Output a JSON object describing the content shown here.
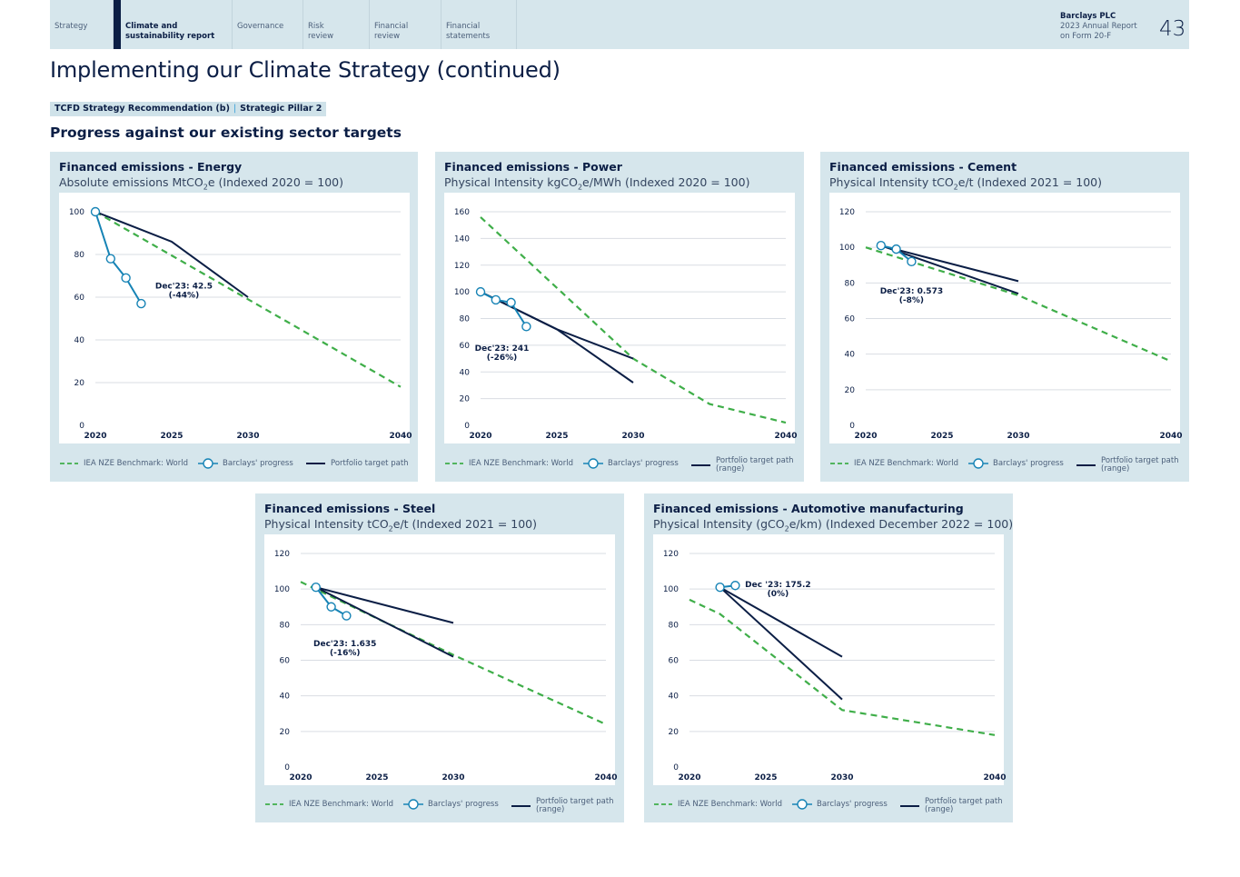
{
  "nav": {
    "tabs": [
      {
        "label": "Strategy"
      },
      {
        "label": "Climate and\nsustainability report"
      },
      {
        "label": "Governance"
      },
      {
        "label": "Risk\nreview"
      },
      {
        "label": "Financial\nreview"
      },
      {
        "label": "Financial\nstatements"
      }
    ],
    "brand_line1": "Barclays PLC",
    "brand_line2": "2023 Annual Report",
    "brand_line3": "on Form 20-F",
    "page_number": "43"
  },
  "page_title": "Implementing our Climate Strategy (continued)",
  "tag": {
    "part1": "TCFD Strategy Recommendation (b)",
    "part2": "Strategic Pillar 2"
  },
  "section_title": "Progress against our existing sector targets",
  "colors": {
    "benchmark": "#3fae49",
    "progress": "#1683b5",
    "target": "#0b1e45",
    "panel_bg": "#d6e6ec"
  },
  "legend": {
    "benchmark": "IEA NZE Benchmark: World",
    "progress": "Barclays' progress",
    "target": "Portfolio target path",
    "target_range": "Portfolio target path\n(range)"
  },
  "chart_data": [
    {
      "type": "line",
      "title": "Financed emissions - Energy",
      "subtitle_pre": "Absolute emissions MtCO",
      "subtitle_sub": "2",
      "subtitle_post": "e (Indexed 2020 = 100)",
      "xlim": [
        2020,
        2040
      ],
      "ylim": [
        0,
        100
      ],
      "x_ticks": [
        "2020",
        "2025",
        "2030",
        "2040"
      ],
      "y_ticks": [
        "0",
        "20",
        "40",
        "60",
        "80",
        "100"
      ],
      "series": [
        {
          "name": "IEA NZE Benchmark: World",
          "style": "benchmark",
          "x": [
            2020,
            2030,
            2040
          ],
          "y": [
            100,
            59,
            18
          ]
        },
        {
          "name": "Barclays' progress",
          "style": "progress",
          "x": [
            2020,
            2021,
            2022,
            2023
          ],
          "y": [
            100,
            78,
            69,
            57
          ]
        },
        {
          "name": "Portfolio target path",
          "style": "target",
          "x": [
            2020,
            2025,
            2030
          ],
          "y": [
            100,
            86,
            60
          ]
        }
      ],
      "annotation": {
        "line1": "Dec'23: 42.5",
        "line2": "(-44%)",
        "x": 2025.8,
        "y": 64
      },
      "legend_range": false
    },
    {
      "type": "line",
      "title": "Financed emissions - Power",
      "subtitle_pre": "Physical Intensity kgCO",
      "subtitle_sub": "2",
      "subtitle_post": "e/MWh (Indexed 2020 = 100)",
      "xlim": [
        2020,
        2040
      ],
      "ylim": [
        0,
        160
      ],
      "x_ticks": [
        "2020",
        "2025",
        "2030",
        "2040"
      ],
      "y_ticks": [
        "0",
        "20",
        "40",
        "60",
        "80",
        "100",
        "120",
        "140",
        "160"
      ],
      "series": [
        {
          "name": "IEA NZE Benchmark: World",
          "style": "benchmark",
          "x": [
            2020,
            2030,
            2035,
            2040
          ],
          "y": [
            156,
            50,
            16,
            2
          ]
        },
        {
          "name": "Barclays' progress",
          "style": "progress",
          "x": [
            2020,
            2021,
            2022,
            2023
          ],
          "y": [
            100,
            94,
            92,
            74
          ]
        },
        {
          "name": "Portfolio target path (upper)",
          "style": "target",
          "x": [
            2020,
            2025,
            2030
          ],
          "y": [
            100,
            72,
            50
          ]
        },
        {
          "name": "Portfolio target path (lower)",
          "style": "target",
          "x": [
            2020,
            2025,
            2030
          ],
          "y": [
            100,
            72,
            32
          ]
        }
      ],
      "annotation": {
        "line1": "Dec'23: 241",
        "line2": "(-26%)",
        "x": 2021.4,
        "y": 56
      },
      "legend_range": true
    },
    {
      "type": "line",
      "title": "Financed emissions - Cement",
      "subtitle_pre": "Physical Intensity tCO",
      "subtitle_sub": "2",
      "subtitle_post": "e/t (Indexed 2021 = 100)",
      "xlim": [
        2020,
        2040
      ],
      "ylim": [
        0,
        120
      ],
      "x_ticks": [
        "2020",
        "2025",
        "2030",
        "2040"
      ],
      "y_ticks": [
        "0",
        "20",
        "40",
        "60",
        "80",
        "100",
        "120"
      ],
      "series": [
        {
          "name": "IEA NZE Benchmark: World",
          "style": "benchmark",
          "x": [
            2020,
            2030,
            2040
          ],
          "y": [
            100,
            73,
            36
          ]
        },
        {
          "name": "Barclays' progress",
          "style": "progress",
          "x": [
            2021,
            2022,
            2023
          ],
          "y": [
            101,
            99,
            92
          ]
        },
        {
          "name": "Portfolio target path (upper)",
          "style": "target",
          "x": [
            2021,
            2030
          ],
          "y": [
            101,
            81
          ]
        },
        {
          "name": "Portfolio target path (lower)",
          "style": "target",
          "x": [
            2021,
            2030
          ],
          "y": [
            101,
            74
          ]
        }
      ],
      "annotation": {
        "line1": "Dec'23: 0.573",
        "line2": "(-8%)",
        "x": 2023,
        "y": 74
      },
      "legend_range": true
    },
    {
      "type": "line",
      "title": "Financed emissions - Steel",
      "subtitle_pre": "Physical Intensity tCO",
      "subtitle_sub": "2",
      "subtitle_post": "e/t (Indexed 2021 = 100)",
      "xlim": [
        2020,
        2040
      ],
      "ylim": [
        0,
        120
      ],
      "x_ticks": [
        "2020",
        "2025",
        "2030",
        "2040"
      ],
      "y_ticks": [
        "0",
        "20",
        "40",
        "60",
        "80",
        "100",
        "120"
      ],
      "series": [
        {
          "name": "IEA NZE Benchmark: World",
          "style": "benchmark",
          "x": [
            2020,
            2030,
            2040
          ],
          "y": [
            104,
            63,
            24
          ]
        },
        {
          "name": "Barclays' progress",
          "style": "progress",
          "x": [
            2021,
            2022,
            2023
          ],
          "y": [
            101,
            90,
            85
          ]
        },
        {
          "name": "Portfolio target path (upper)",
          "style": "target",
          "x": [
            2021,
            2030
          ],
          "y": [
            101,
            81
          ]
        },
        {
          "name": "Portfolio target path (lower)",
          "style": "target",
          "x": [
            2021,
            2030
          ],
          "y": [
            101,
            62
          ]
        }
      ],
      "annotation": {
        "line1": "Dec'23: 1.635",
        "line2": "(-16%)",
        "x": 2022.9,
        "y": 68
      },
      "legend_range": true
    },
    {
      "type": "line",
      "title": "Financed emissions - Automotive manufacturing",
      "subtitle_pre": "Physical Intensity (gCO",
      "subtitle_sub": "2",
      "subtitle_post": "e/km) (Indexed December 2022 = 100)",
      "xlim": [
        2020,
        2040
      ],
      "ylim": [
        0,
        120
      ],
      "x_ticks": [
        "2020",
        "2025",
        "2030",
        "2040"
      ],
      "y_ticks": [
        "0",
        "20",
        "40",
        "60",
        "80",
        "100",
        "120"
      ],
      "series": [
        {
          "name": "IEA NZE Benchmark: World",
          "style": "benchmark",
          "x": [
            2020,
            2022,
            2030,
            2040
          ],
          "y": [
            94,
            86,
            32,
            18
          ]
        },
        {
          "name": "Barclays' progress",
          "style": "progress",
          "x": [
            2022,
            2023
          ],
          "y": [
            101,
            102
          ]
        },
        {
          "name": "Portfolio target path (upper)",
          "style": "target",
          "x": [
            2022,
            2030
          ],
          "y": [
            101,
            62
          ]
        },
        {
          "name": "Portfolio target path (lower)",
          "style": "target",
          "x": [
            2022,
            2030
          ],
          "y": [
            101,
            38
          ]
        }
      ],
      "annotation": {
        "line1": "Dec '23: 175.2",
        "line2": "(0%)",
        "x": 2025.8,
        "y": 101
      },
      "legend_range": true
    }
  ]
}
